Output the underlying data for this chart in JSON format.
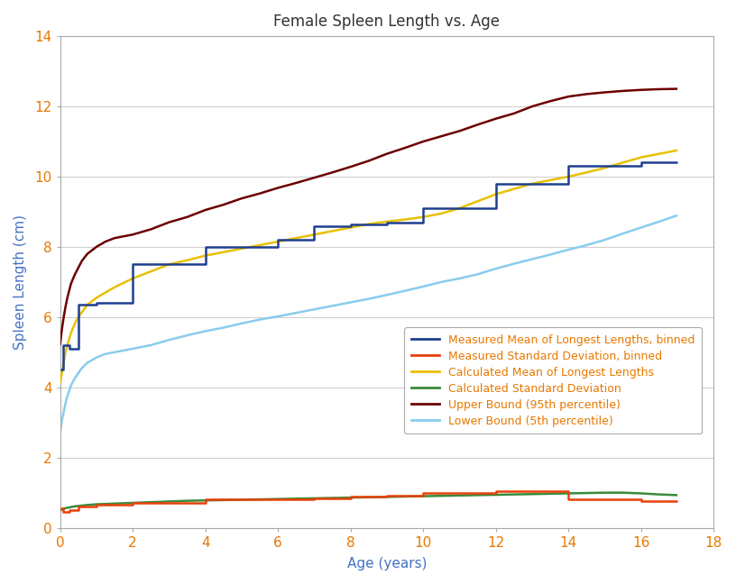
{
  "title": "Female Spleen Length vs. Age",
  "xlabel": "Age (years)",
  "ylabel": "Spleen Length (cm)",
  "xlim": [
    0,
    18
  ],
  "ylim": [
    0,
    14
  ],
  "xticks": [
    0,
    2,
    4,
    6,
    8,
    10,
    12,
    14,
    16,
    18
  ],
  "yticks": [
    0,
    2,
    4,
    6,
    8,
    10,
    12,
    14
  ],
  "background_color": "#ffffff",
  "measured_mean_binned_x": [
    0.0,
    0.08,
    0.08,
    0.25,
    0.25,
    0.5,
    0.5,
    1.0,
    1.0,
    2.0,
    2.0,
    3.0,
    3.0,
    4.0,
    4.0,
    5.0,
    5.0,
    6.0,
    6.0,
    7.0,
    7.0,
    8.0,
    8.0,
    9.0,
    9.0,
    10.0,
    10.0,
    11.0,
    11.0,
    12.0,
    12.0,
    13.0,
    13.0,
    14.0,
    14.0,
    15.0,
    15.0,
    16.0,
    16.0,
    17.0
  ],
  "measured_mean_binned_y": [
    4.5,
    4.5,
    5.2,
    5.2,
    5.1,
    5.1,
    6.35,
    6.35,
    6.4,
    6.4,
    7.5,
    7.5,
    7.5,
    7.5,
    8.0,
    8.0,
    8.0,
    8.0,
    8.2,
    8.2,
    8.6,
    8.6,
    8.65,
    8.65,
    8.7,
    8.7,
    9.1,
    9.1,
    9.1,
    9.1,
    9.8,
    9.8,
    9.8,
    9.8,
    10.3,
    10.3,
    10.3,
    10.3,
    10.4,
    10.4
  ],
  "measured_std_binned_x": [
    0.0,
    0.08,
    0.08,
    0.25,
    0.25,
    0.5,
    0.5,
    1.0,
    1.0,
    2.0,
    2.0,
    3.0,
    3.0,
    4.0,
    4.0,
    5.0,
    5.0,
    6.0,
    6.0,
    7.0,
    7.0,
    8.0,
    8.0,
    9.0,
    9.0,
    10.0,
    10.0,
    11.0,
    11.0,
    12.0,
    12.0,
    13.0,
    13.0,
    14.0,
    14.0,
    15.0,
    15.0,
    16.0,
    16.0,
    17.0
  ],
  "measured_std_binned_y": [
    0.55,
    0.55,
    0.45,
    0.45,
    0.5,
    0.5,
    0.6,
    0.6,
    0.65,
    0.65,
    0.72,
    0.72,
    0.72,
    0.72,
    0.8,
    0.8,
    0.8,
    0.8,
    0.82,
    0.82,
    0.85,
    0.85,
    0.9,
    0.9,
    0.92,
    0.92,
    1.0,
    1.0,
    1.0,
    1.0,
    1.05,
    1.05,
    1.05,
    1.05,
    0.82,
    0.82,
    0.82,
    0.82,
    0.75,
    0.75
  ],
  "calc_mean_x": [
    0.0,
    0.05,
    0.1,
    0.15,
    0.2,
    0.3,
    0.4,
    0.5,
    0.75,
    1.0,
    1.5,
    2.0,
    2.5,
    3.0,
    3.5,
    4.0,
    4.5,
    5.0,
    5.5,
    6.0,
    6.5,
    7.0,
    7.5,
    8.0,
    8.5,
    9.0,
    9.5,
    10.0,
    10.5,
    11.0,
    11.5,
    12.0,
    12.5,
    13.0,
    13.5,
    14.0,
    14.5,
    15.0,
    15.5,
    16.0,
    16.5,
    17.0
  ],
  "calc_mean_y": [
    4.1,
    4.4,
    4.7,
    5.0,
    5.2,
    5.55,
    5.8,
    6.0,
    6.35,
    6.55,
    6.85,
    7.1,
    7.3,
    7.5,
    7.62,
    7.75,
    7.85,
    7.95,
    8.05,
    8.15,
    8.25,
    8.35,
    8.45,
    8.55,
    8.65,
    8.72,
    8.78,
    8.85,
    8.95,
    9.1,
    9.3,
    9.5,
    9.65,
    9.8,
    9.9,
    10.0,
    10.12,
    10.25,
    10.4,
    10.55,
    10.65,
    10.75
  ],
  "calc_std_x": [
    0.0,
    0.05,
    0.1,
    0.15,
    0.2,
    0.3,
    0.4,
    0.5,
    0.75,
    1.0,
    1.5,
    2.0,
    2.5,
    3.0,
    3.5,
    4.0,
    4.5,
    5.0,
    5.5,
    6.0,
    6.5,
    7.0,
    7.5,
    8.0,
    8.5,
    9.0,
    9.5,
    10.0,
    10.5,
    11.0,
    11.5,
    12.0,
    12.5,
    13.0,
    13.5,
    14.0,
    14.5,
    15.0,
    15.5,
    16.0,
    16.5,
    17.0
  ],
  "calc_std_y": [
    0.5,
    0.52,
    0.54,
    0.56,
    0.57,
    0.59,
    0.61,
    0.62,
    0.65,
    0.67,
    0.69,
    0.71,
    0.73,
    0.75,
    0.77,
    0.78,
    0.79,
    0.8,
    0.81,
    0.82,
    0.83,
    0.84,
    0.85,
    0.86,
    0.87,
    0.88,
    0.89,
    0.9,
    0.91,
    0.92,
    0.93,
    0.94,
    0.95,
    0.96,
    0.97,
    0.98,
    0.99,
    1.0,
    1.0,
    0.98,
    0.95,
    0.93
  ],
  "upper_bound_x": [
    0.0,
    0.02,
    0.05,
    0.1,
    0.15,
    0.2,
    0.3,
    0.4,
    0.5,
    0.6,
    0.75,
    1.0,
    1.25,
    1.5,
    2.0,
    2.5,
    3.0,
    3.5,
    4.0,
    4.5,
    5.0,
    5.5,
    6.0,
    6.5,
    7.0,
    7.5,
    8.0,
    8.5,
    9.0,
    9.5,
    10.0,
    10.5,
    11.0,
    11.5,
    12.0,
    12.5,
    13.0,
    13.5,
    14.0,
    14.5,
    15.0,
    15.5,
    16.0,
    16.5,
    17.0
  ],
  "upper_bound_y": [
    5.2,
    5.4,
    5.65,
    6.0,
    6.3,
    6.55,
    6.95,
    7.2,
    7.4,
    7.6,
    7.8,
    8.0,
    8.15,
    8.25,
    8.35,
    8.5,
    8.7,
    8.85,
    9.05,
    9.2,
    9.38,
    9.52,
    9.68,
    9.82,
    9.97,
    10.12,
    10.28,
    10.45,
    10.65,
    10.82,
    11.0,
    11.15,
    11.3,
    11.48,
    11.65,
    11.8,
    12.0,
    12.15,
    12.28,
    12.35,
    12.4,
    12.44,
    12.47,
    12.49,
    12.5
  ],
  "lower_bound_x": [
    0.0,
    0.02,
    0.05,
    0.1,
    0.15,
    0.2,
    0.3,
    0.4,
    0.5,
    0.6,
    0.75,
    1.0,
    1.25,
    1.5,
    2.0,
    2.5,
    3.0,
    3.5,
    4.0,
    4.5,
    5.0,
    5.5,
    6.0,
    6.5,
    7.0,
    7.5,
    8.0,
    8.5,
    9.0,
    9.5,
    10.0,
    10.5,
    11.0,
    11.5,
    12.0,
    12.5,
    13.0,
    13.5,
    14.0,
    14.5,
    15.0,
    15.5,
    16.0,
    16.5,
    17.0
  ],
  "lower_bound_y": [
    2.7,
    2.85,
    3.05,
    3.3,
    3.55,
    3.75,
    4.05,
    4.25,
    4.4,
    4.55,
    4.7,
    4.85,
    4.95,
    5.0,
    5.1,
    5.2,
    5.35,
    5.48,
    5.6,
    5.7,
    5.82,
    5.93,
    6.02,
    6.12,
    6.22,
    6.32,
    6.42,
    6.52,
    6.63,
    6.75,
    6.87,
    7.0,
    7.1,
    7.22,
    7.38,
    7.52,
    7.65,
    7.78,
    7.92,
    8.05,
    8.2,
    8.38,
    8.55,
    8.72,
    8.9
  ],
  "color_measured_mean": "#1F3F8F",
  "color_measured_std": "#E8400A",
  "color_calc_mean": "#E8C000",
  "color_calc_std": "#3A8A3A",
  "color_upper": "#6B0000",
  "color_lower": "#89CCEE",
  "legend_labels": [
    "Measured Mean of Longest Lengths, binned",
    "Measured Standard Deviation, binned",
    "Calculated Mean of Longest Lengths",
    "Calculated Standard Deviation",
    "Upper Bound (95th percentile)",
    "Lower Bound (5th percentile)"
  ],
  "title_color": "#333333",
  "axis_label_color": "#4472c4",
  "tick_color": "#E87800",
  "grid_color": "#d0d0d0",
  "spine_color": "#aaaaaa",
  "legend_fontsize": 9.0,
  "axis_fontsize": 11,
  "title_fontsize": 12
}
